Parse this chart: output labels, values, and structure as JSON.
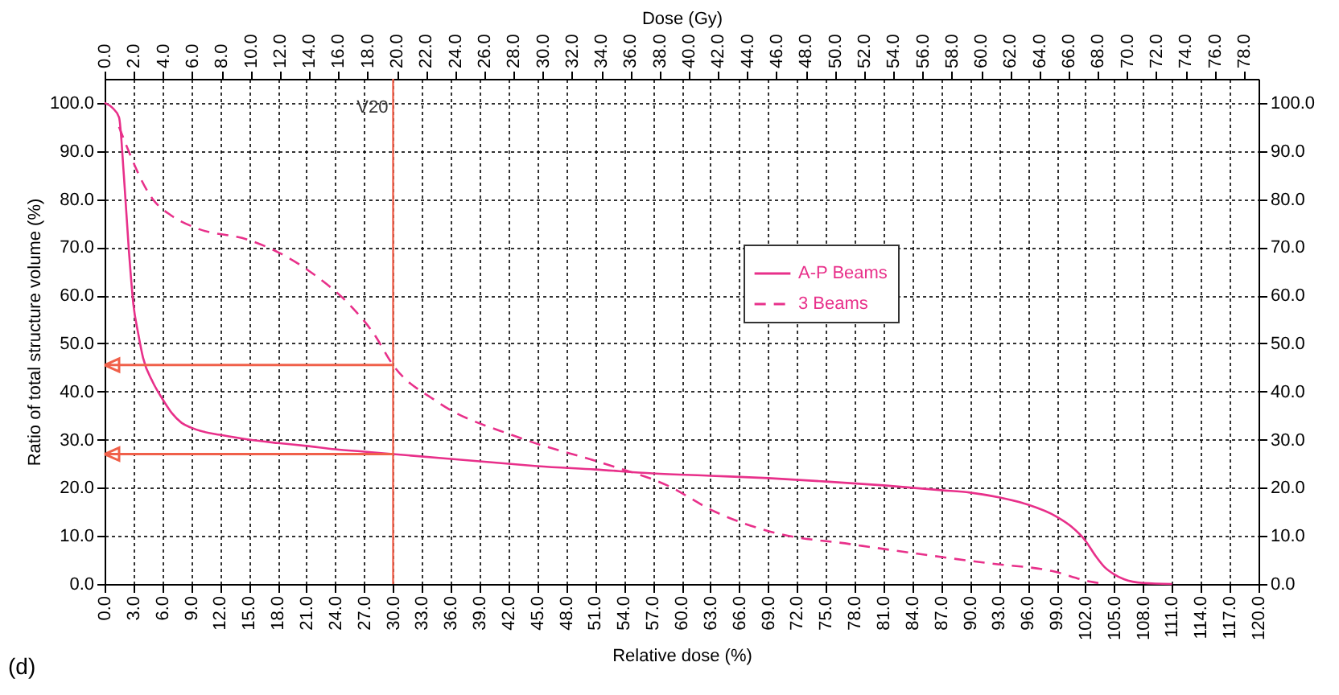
{
  "chart_data": {
    "type": "line",
    "xlabel": "Relative dose (%)",
    "ylabel": "Ratio of total structure volume (%)",
    "x2label": "Dose (Gy)",
    "xlim": [
      0,
      120
    ],
    "ylim": [
      0,
      105
    ],
    "x2lim": [
      0,
      79
    ],
    "y2lim": [
      0,
      105
    ],
    "xticks": [
      {
        "value": 0,
        "label": "0.0"
      },
      {
        "value": 3,
        "label": "3.0"
      },
      {
        "value": 6,
        "label": "6.0"
      },
      {
        "value": 9,
        "label": "9.0"
      },
      {
        "value": 12,
        "label": "12.0"
      },
      {
        "value": 15,
        "label": "15.0"
      },
      {
        "value": 18,
        "label": "18.0"
      },
      {
        "value": 21,
        "label": "21.0"
      },
      {
        "value": 24,
        "label": "24.0"
      },
      {
        "value": 27,
        "label": "27.0"
      },
      {
        "value": 30,
        "label": "30.0"
      },
      {
        "value": 33,
        "label": "33.0"
      },
      {
        "value": 36,
        "label": "36.0"
      },
      {
        "value": 39,
        "label": "39.0"
      },
      {
        "value": 42,
        "label": "42.0"
      },
      {
        "value": 45,
        "label": "45.0"
      },
      {
        "value": 48,
        "label": "48.0"
      },
      {
        "value": 51,
        "label": "51.0"
      },
      {
        "value": 54,
        "label": "54.0"
      },
      {
        "value": 57,
        "label": "57.0"
      },
      {
        "value": 60,
        "label": "60.0"
      },
      {
        "value": 63,
        "label": "63.0"
      },
      {
        "value": 66,
        "label": "66.0"
      },
      {
        "value": 69,
        "label": "69.0"
      },
      {
        "value": 72,
        "label": "72.0"
      },
      {
        "value": 75,
        "label": "75.0"
      },
      {
        "value": 78,
        "label": "78.0"
      },
      {
        "value": 81,
        "label": "81.0"
      },
      {
        "value": 84,
        "label": "84.0"
      },
      {
        "value": 87,
        "label": "87.0"
      },
      {
        "value": 90,
        "label": "90.0"
      },
      {
        "value": 93,
        "label": "93.0"
      },
      {
        "value": 96,
        "label": "96.0"
      },
      {
        "value": 99,
        "label": "99.0"
      },
      {
        "value": 102,
        "label": "102.0"
      },
      {
        "value": 105,
        "label": "105.0"
      },
      {
        "value": 108,
        "label": "108.0"
      },
      {
        "value": 111,
        "label": "111.0"
      },
      {
        "value": 114,
        "label": "114.0"
      },
      {
        "value": 117,
        "label": "117.0"
      },
      {
        "value": 120,
        "label": "120.0"
      }
    ],
    "x2ticks": [
      {
        "value": 0,
        "label": "0.0"
      },
      {
        "value": 2,
        "label": "2.0"
      },
      {
        "value": 4,
        "label": "4.0"
      },
      {
        "value": 6,
        "label": "6.0"
      },
      {
        "value": 8,
        "label": "8.0"
      },
      {
        "value": 10,
        "label": "10.0"
      },
      {
        "value": 12,
        "label": "12.0"
      },
      {
        "value": 14,
        "label": "14.0"
      },
      {
        "value": 16,
        "label": "16.0"
      },
      {
        "value": 18,
        "label": "18.0"
      },
      {
        "value": 20,
        "label": "20.0"
      },
      {
        "value": 22,
        "label": "22.0"
      },
      {
        "value": 24,
        "label": "24.0"
      },
      {
        "value": 26,
        "label": "26.0"
      },
      {
        "value": 28,
        "label": "28.0"
      },
      {
        "value": 30,
        "label": "30.0"
      },
      {
        "value": 32,
        "label": "32.0"
      },
      {
        "value": 34,
        "label": "34.0"
      },
      {
        "value": 36,
        "label": "36.0"
      },
      {
        "value": 38,
        "label": "38.0"
      },
      {
        "value": 40,
        "label": "40.0"
      },
      {
        "value": 42,
        "label": "42.0"
      },
      {
        "value": 44,
        "label": "44.0"
      },
      {
        "value": 46,
        "label": "46.0"
      },
      {
        "value": 48,
        "label": "48.0"
      },
      {
        "value": 50,
        "label": "50.0"
      },
      {
        "value": 52,
        "label": "52.0"
      },
      {
        "value": 54,
        "label": "54.0"
      },
      {
        "value": 56,
        "label": "56.0"
      },
      {
        "value": 58,
        "label": "58.0"
      },
      {
        "value": 60,
        "label": "60.0"
      },
      {
        "value": 62,
        "label": "62.0"
      },
      {
        "value": 64,
        "label": "64.0"
      },
      {
        "value": 66,
        "label": "66.0"
      },
      {
        "value": 68,
        "label": "68.0"
      },
      {
        "value": 70,
        "label": "70.0"
      },
      {
        "value": 72,
        "label": "72.0"
      },
      {
        "value": 74,
        "label": "74.0"
      },
      {
        "value": 76,
        "label": "76.0"
      },
      {
        "value": 78,
        "label": "78.0"
      }
    ],
    "yticks": [
      {
        "value": 0,
        "label": "0.0"
      },
      {
        "value": 10,
        "label": "10.0"
      },
      {
        "value": 20,
        "label": "20.0"
      },
      {
        "value": 30,
        "label": "30.0"
      },
      {
        "value": 40,
        "label": "40.0"
      },
      {
        "value": 50,
        "label": "50.0"
      },
      {
        "value": 60,
        "label": "60.0"
      },
      {
        "value": 70,
        "label": "70.0"
      },
      {
        "value": 80,
        "label": "80.0"
      },
      {
        "value": 90,
        "label": "90.0"
      },
      {
        "value": 100,
        "label": "100.0"
      }
    ],
    "y2ticks": [
      {
        "value": 0,
        "label": "0.0"
      },
      {
        "value": 10,
        "label": "10.0"
      },
      {
        "value": 20,
        "label": "20.0"
      },
      {
        "value": 30,
        "label": "30.0"
      },
      {
        "value": 40,
        "label": "40.0"
      },
      {
        "value": 50,
        "label": "50.0"
      },
      {
        "value": 60,
        "label": "60.0"
      },
      {
        "value": 70,
        "label": "70.0"
      },
      {
        "value": 80,
        "label": "80.0"
      },
      {
        "value": 90,
        "label": "90.0"
      },
      {
        "value": 100,
        "label": "100.0"
      }
    ],
    "grid": true,
    "legend": "center",
    "marker": "none",
    "series": [
      {
        "name": "A-P Beams",
        "color": "#e8308a",
        "line_style": "solid",
        "x": [
          0,
          0.8,
          1.5,
          2,
          2.5,
          3,
          3.5,
          4,
          5,
          6,
          7,
          8,
          9,
          10,
          12,
          15,
          18,
          21,
          24,
          27,
          30,
          36,
          42,
          45,
          51,
          57,
          63,
          69,
          75,
          81,
          87,
          90,
          93,
          96,
          99,
          100.5,
          102,
          103,
          104,
          105,
          106,
          108,
          111
        ],
        "values": [
          100,
          99,
          97,
          85,
          70,
          58,
          52,
          47,
          42,
          38.5,
          35.5,
          33.5,
          32.5,
          31.8,
          31,
          30,
          29.3,
          28.7,
          28,
          27.5,
          27,
          26,
          25,
          24.5,
          23.8,
          23,
          22.5,
          22,
          21.3,
          20.5,
          19.5,
          19,
          18,
          16.5,
          14,
          12,
          9,
          6,
          3.5,
          2,
          1,
          0.2,
          0
        ]
      },
      {
        "name": "3 Beams",
        "color": "#e8308a",
        "line_style": "dashed",
        "x": [
          1.5,
          5,
          7,
          9.5,
          15,
          18,
          22,
          25.5,
          28,
          30,
          34.5,
          43,
          52,
          58.5,
          63.5,
          70,
          77.5,
          84.5,
          92,
          98.5,
          102.5,
          104
        ],
        "values": [
          95,
          80,
          76.5,
          74,
          71.5,
          69,
          64,
          58,
          52,
          45.5,
          38,
          30.5,
          25,
          20.5,
          15,
          10.5,
          8.3,
          6.3,
          4.3,
          2.7,
          0.5,
          0
        ]
      }
    ],
    "ref_lines": [
      {
        "axis": "x",
        "value": 30,
        "label": "V20",
        "color": "#f0604a"
      },
      {
        "axis": "y",
        "value": 45.5,
        "label": null,
        "color": "#f0604a"
      },
      {
        "axis": "y",
        "value": 27,
        "label": null,
        "color": "#f0604a"
      }
    ],
    "annotations": [
      "(d)"
    ]
  }
}
